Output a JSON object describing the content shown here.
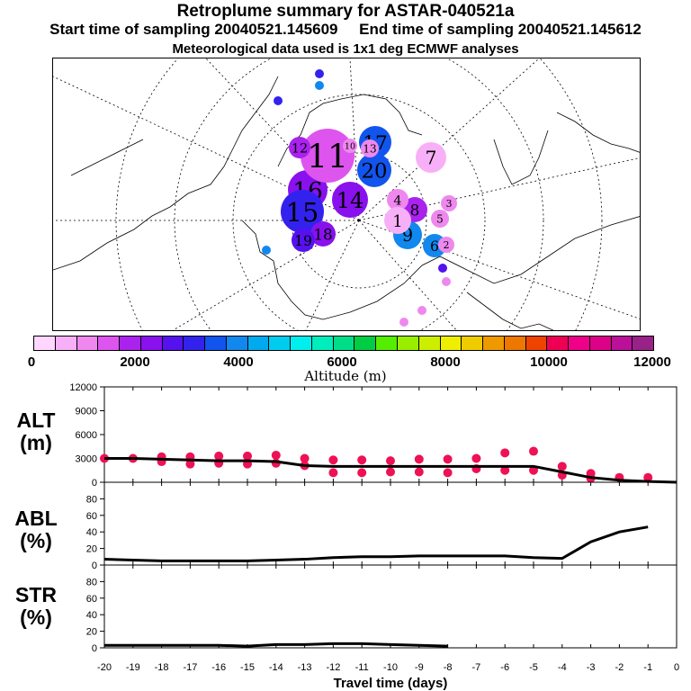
{
  "header": {
    "title": "Retroplume summary for ASTAR-040521a",
    "sampling_line": "Start time of sampling 20040521.145609     End time of sampling 20040521.145612",
    "met_line": "Meteorological data used is 1x1 deg ECMWF analyses"
  },
  "colorbar": {
    "label": "Altitude (m)",
    "ticks": [
      "0",
      "2000",
      "4000",
      "6000",
      "8000",
      "10000",
      "12000"
    ],
    "colors": [
      "#ffd6ff",
      "#f7b0f7",
      "#ee88ee",
      "#dd55ee",
      "#aa22ee",
      "#8811ee",
      "#5511ee",
      "#3322ee",
      "#1155ee",
      "#1188ee",
      "#00aaee",
      "#00ccee",
      "#00eeee",
      "#00eebb",
      "#00dd88",
      "#00cc44",
      "#55ee00",
      "#99ee00",
      "#ccee00",
      "#eeee00",
      "#eecc00",
      "#ee9900",
      "#ee7700",
      "#ee4400",
      "#ee0055",
      "#ee0088",
      "#dd0088",
      "#bb1099",
      "#992288"
    ]
  },
  "map": {
    "plume_markers": [
      {
        "label": "16",
        "color": "#8811ee"
      },
      {
        "label": "15",
        "color": "#3322ee"
      },
      {
        "label": "11",
        "color": "#dd55ee"
      },
      {
        "label": "17",
        "color": "#1155ee"
      },
      {
        "label": "20",
        "color": "#1155ee"
      },
      {
        "label": "14",
        "color": "#8811ee"
      },
      {
        "label": "12",
        "color": "#aa22ee"
      },
      {
        "label": "13",
        "color": "#ee88ee"
      },
      {
        "label": "18",
        "color": "#8811ee"
      },
      {
        "label": "19",
        "color": "#5511ee"
      },
      {
        "label": "10",
        "color": "#ee88ee"
      },
      {
        "label": "9",
        "color": "#1188ee"
      },
      {
        "label": "8",
        "color": "#aa22ee"
      },
      {
        "label": "7",
        "color": "#f7b0f7"
      },
      {
        "label": "6",
        "color": "#1188ee"
      },
      {
        "label": "5",
        "color": "#ee88ee"
      },
      {
        "label": "4",
        "color": "#ee88ee"
      },
      {
        "label": "3",
        "color": "#ee88ee"
      },
      {
        "label": "2",
        "color": "#ee88ee"
      },
      {
        "label": "1",
        "color": "#f7b0f7"
      }
    ]
  },
  "chart_data": [
    {
      "type": "scatter",
      "panel": "ALT",
      "ylabel": "ALT\n(m)",
      "ylabel_lines": [
        "ALT",
        "(m)"
      ],
      "ylim": [
        0,
        12000
      ],
      "yticks": [
        0,
        3000,
        6000,
        9000,
        12000
      ],
      "xlim": [
        -20,
        0
      ],
      "line_color": "#000000",
      "marker_color": "#ee1155",
      "median_line": {
        "x": [
          -20,
          -19,
          -18,
          -17,
          -16,
          -15,
          -14,
          -13,
          -12,
          -11,
          -10,
          -9,
          -8,
          -7,
          -6,
          -5,
          -4,
          -3,
          -2,
          -1,
          0
        ],
        "y": [
          3000,
          3000,
          2900,
          2800,
          2700,
          2700,
          2600,
          2100,
          2000,
          2000,
          2000,
          2000,
          2000,
          2000,
          2000,
          2000,
          1300,
          600,
          250,
          100,
          0
        ]
      },
      "markers": [
        {
          "x": -20,
          "y": 3000
        },
        {
          "x": -19,
          "y": 3000
        },
        {
          "x": -18,
          "y": 3200
        },
        {
          "x": -18,
          "y": 2600
        },
        {
          "x": -17,
          "y": 3200
        },
        {
          "x": -17,
          "y": 2300
        },
        {
          "x": -16,
          "y": 3300
        },
        {
          "x": -16,
          "y": 2400
        },
        {
          "x": -15,
          "y": 3300
        },
        {
          "x": -15,
          "y": 2300
        },
        {
          "x": -14,
          "y": 3400
        },
        {
          "x": -14,
          "y": 2400
        },
        {
          "x": -13,
          "y": 3000
        },
        {
          "x": -13,
          "y": 2100
        },
        {
          "x": -12,
          "y": 2800
        },
        {
          "x": -12,
          "y": 1200
        },
        {
          "x": -11,
          "y": 2800
        },
        {
          "x": -11,
          "y": 1200
        },
        {
          "x": -10,
          "y": 2700
        },
        {
          "x": -10,
          "y": 1300
        },
        {
          "x": -9,
          "y": 2900
        },
        {
          "x": -9,
          "y": 1300
        },
        {
          "x": -8,
          "y": 2900
        },
        {
          "x": -8,
          "y": 1200
        },
        {
          "x": -7,
          "y": 3000
        },
        {
          "x": -7,
          "y": 1700
        },
        {
          "x": -6,
          "y": 3700
        },
        {
          "x": -6,
          "y": 1500
        },
        {
          "x": -5,
          "y": 3900
        },
        {
          "x": -5,
          "y": 1500
        },
        {
          "x": -4,
          "y": 2000
        },
        {
          "x": -4,
          "y": 900
        },
        {
          "x": -3,
          "y": 1100
        },
        {
          "x": -3,
          "y": 500
        },
        {
          "x": -2,
          "y": 600
        },
        {
          "x": -1,
          "y": 600
        }
      ]
    },
    {
      "type": "line",
      "panel": "ABL",
      "ylabel": "ABL\n(%)",
      "ylabel_lines": [
        "ABL",
        "(%)"
      ],
      "ylim": [
        0,
        100
      ],
      "yticks": [
        0,
        20,
        40,
        60,
        80
      ],
      "xlim": [
        -20,
        0
      ],
      "x": [
        -20,
        -19,
        -18,
        -17,
        -16,
        -15,
        -14,
        -13,
        -12,
        -11,
        -10,
        -9,
        -8,
        -7,
        -6,
        -5,
        -4,
        -3,
        -2,
        -1
      ],
      "y": [
        7,
        6,
        5,
        5,
        5,
        5,
        6,
        7,
        9,
        10,
        10,
        11,
        11,
        11,
        11,
        9,
        8,
        28,
        40,
        46
      ]
    },
    {
      "type": "line",
      "panel": "STR",
      "ylabel": "STR\n(%)",
      "ylabel_lines": [
        "STR",
        "(%)"
      ],
      "ylim": [
        0,
        100
      ],
      "yticks": [
        0,
        20,
        40,
        60,
        80
      ],
      "xlim": [
        -20,
        0
      ],
      "xlabel": "Travel time (days)",
      "xticks": [
        "-20",
        "-19",
        "-18",
        "-17",
        "-16",
        "-15",
        "-14",
        "-13",
        "-12",
        "-11",
        "-10",
        "-9",
        "-8",
        "-7",
        "-6",
        "-5",
        "-4",
        "-3",
        "-2",
        "-1",
        "0"
      ],
      "x": [
        -20,
        -19,
        -18,
        -17,
        -16,
        -15,
        -14,
        -13,
        -12,
        -11,
        -10,
        -9,
        -8
      ],
      "y": [
        3,
        3,
        3,
        3,
        3,
        2,
        4,
        4,
        5,
        5,
        4,
        3,
        2
      ]
    }
  ]
}
